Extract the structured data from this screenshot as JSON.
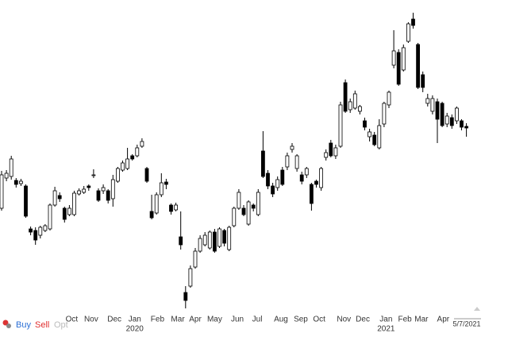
{
  "chart_data": {
    "type": "candlestick",
    "ylim": [
      0,
      400
    ],
    "open": [
      138,
      176,
      178,
      173,
      169,
      166,
      112,
      110,
      104,
      110,
      112,
      142,
      154,
      138,
      130,
      130,
      156,
      158,
      166,
      179,
      160,
      160,
      160,
      150,
      172,
      186,
      188,
      204,
      204,
      216,
      188,
      134,
      132,
      155,
      171,
      142,
      136,
      102,
      32,
      40,
      64,
      84,
      92,
      88,
      108,
      90,
      110,
      86,
      116,
      138,
      138,
      118,
      142,
      130,
      210,
      182,
      166,
      164,
      186,
      190,
      212,
      188,
      180,
      180,
      168,
      172,
      164,
      202,
      220,
      204,
      216,
      296,
      262,
      264,
      260,
      248,
      228,
      230,
      214,
      244,
      268,
      318,
      334,
      312,
      348,
      376,
      344,
      306,
      270,
      260,
      272,
      270,
      244,
      252,
      248,
      248,
      241
    ],
    "high": [
      185,
      186,
      204,
      176,
      175,
      168,
      115,
      114,
      116,
      118,
      144,
      165,
      158,
      140,
      142,
      160,
      163,
      166,
      168,
      187,
      163,
      168,
      162,
      180,
      190,
      198,
      214,
      206,
      218,
      226,
      190,
      155,
      158,
      182,
      175,
      144,
      145,
      134,
      40,
      66,
      88,
      104,
      108,
      110,
      112,
      114,
      112,
      116,
      140,
      162,
      142,
      148,
      144,
      162,
      235,
      186,
      170,
      178,
      190,
      208,
      220,
      206,
      184,
      190,
      170,
      174,
      190,
      212,
      224,
      218,
      272,
      300,
      276,
      286,
      268,
      252,
      238,
      234,
      250,
      272,
      286,
      362,
      338,
      344,
      372,
      384,
      346,
      310,
      282,
      280,
      276,
      272,
      258,
      256,
      266,
      250,
      245
    ],
    "low": [
      135,
      172,
      174,
      164,
      166,
      126,
      104,
      92,
      100,
      108,
      110,
      140,
      146,
      120,
      128,
      128,
      154,
      156,
      160,
      176,
      146,
      156,
      144,
      140,
      170,
      184,
      186,
      198,
      202,
      214,
      170,
      124,
      130,
      152,
      162,
      130,
      134,
      86,
      12,
      38,
      62,
      82,
      90,
      86,
      82,
      88,
      90,
      84,
      114,
      136,
      128,
      116,
      134,
      128,
      176,
      162,
      152,
      160,
      166,
      186,
      208,
      184,
      168,
      176,
      135,
      164,
      160,
      198,
      202,
      200,
      214,
      258,
      258,
      262,
      256,
      236,
      222,
      216,
      212,
      240,
      264,
      314,
      292,
      310,
      346,
      364,
      288,
      284,
      266,
      256,
      220,
      240,
      240,
      238,
      244,
      236,
      228
    ],
    "close": [
      180,
      182,
      200,
      168,
      172,
      128,
      108,
      98,
      114,
      116,
      142,
      160,
      150,
      124,
      138,
      157,
      160,
      162,
      164,
      180,
      148,
      164,
      148,
      174,
      188,
      195,
      200,
      200,
      214,
      222,
      172,
      126,
      155,
      170,
      168,
      134,
      142,
      92,
      22,
      62,
      84,
      100,
      104,
      108,
      84,
      112,
      94,
      114,
      138,
      158,
      130,
      146,
      138,
      158,
      178,
      166,
      156,
      174,
      168,
      204,
      216,
      204,
      172,
      188,
      144,
      168,
      188,
      208,
      204,
      214,
      268,
      260,
      272,
      282,
      266,
      240,
      234,
      218,
      242,
      270,
      284,
      336,
      294,
      340,
      370,
      368,
      290,
      290,
      276,
      276,
      250,
      242,
      254,
      242,
      264,
      240,
      239
    ],
    "xticks": [
      {
        "value": 14.5,
        "label": "Oct"
      },
      {
        "value": 18.5,
        "label": "Nov"
      },
      {
        "value": 23.3,
        "label": "Dec"
      },
      {
        "value": 27.5,
        "label": "Jan"
      },
      {
        "value": 32.2,
        "label": "Feb"
      },
      {
        "value": 36.4,
        "label": "Mar"
      },
      {
        "value": 40,
        "label": "Apr"
      },
      {
        "value": 44,
        "label": "May"
      },
      {
        "value": 48.7,
        "label": "Jun"
      },
      {
        "value": 52.8,
        "label": "Jul"
      },
      {
        "value": 57.7,
        "label": "Aug"
      },
      {
        "value": 61.8,
        "label": "Sep"
      },
      {
        "value": 65.6,
        "label": "Oct"
      },
      {
        "value": 70.7,
        "label": "Nov"
      },
      {
        "value": 74.6,
        "label": "Dec"
      },
      {
        "value": 79.4,
        "label": "Jan"
      },
      {
        "value": 83.3,
        "label": "Feb"
      },
      {
        "value": 86.7,
        "label": "Mar"
      },
      {
        "value": 91.2,
        "label": "Apr"
      }
    ],
    "year_labels": [
      {
        "value": 27.5,
        "label": "2020"
      },
      {
        "value": 79.4,
        "label": "2021"
      }
    ],
    "last_date": "5/7/2021",
    "up_color": "#ffffff",
    "down_color": "#000000"
  },
  "toolbar": {
    "buy": "Buy",
    "sell": "Sell",
    "options": "Opt"
  }
}
